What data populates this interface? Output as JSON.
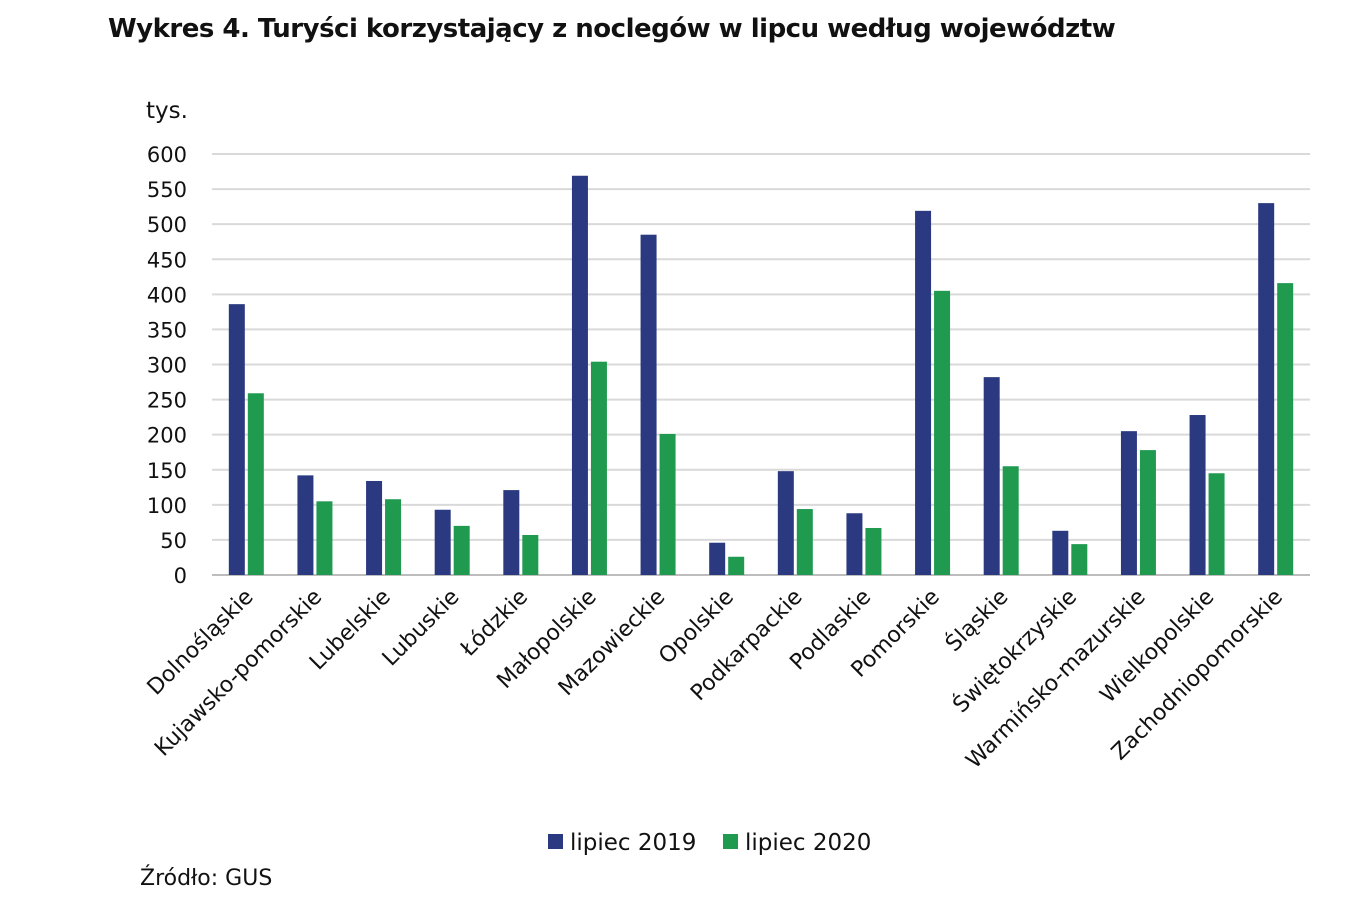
{
  "title": "Wykres 4. Turyści korzystający z noclegów w lipcu według województw",
  "source": "Źródło: GUS",
  "chart_data": {
    "type": "bar",
    "title": "Wykres 4. Turyści korzystający z noclegów w lipcu według województw",
    "ylabel": "tys.",
    "xlabel": "",
    "ylim": [
      0,
      600
    ],
    "yticks": [
      0,
      50,
      100,
      150,
      200,
      250,
      300,
      350,
      400,
      450,
      500,
      550,
      600
    ],
    "grid": true,
    "legend": "bottom",
    "categories": [
      "Dolnośląskie",
      "Kujawsko-pomorskie",
      "Lubelskie",
      "Lubuskie",
      "Łódzkie",
      "Małopolskie",
      "Mazowieckie",
      "Opolskie",
      "Podkarpackie",
      "Podlaskie",
      "Pomorskie",
      "Śląskie",
      "Świętokrzyskie",
      "Warmińsko-mazurskie",
      "Wielkopolskie",
      "Zachodniopomorskie"
    ],
    "series": [
      {
        "name": "lipiec 2019",
        "color": "#2b3a80",
        "values": [
          386,
          142,
          134,
          93,
          121,
          569,
          485,
          46,
          148,
          88,
          519,
          282,
          63,
          205,
          228,
          530
        ]
      },
      {
        "name": "lipiec 2020",
        "color": "#1f9a4f",
        "values": [
          259,
          105,
          108,
          70,
          57,
          304,
          201,
          26,
          94,
          67,
          405,
          155,
          44,
          178,
          145,
          416
        ]
      }
    ]
  }
}
